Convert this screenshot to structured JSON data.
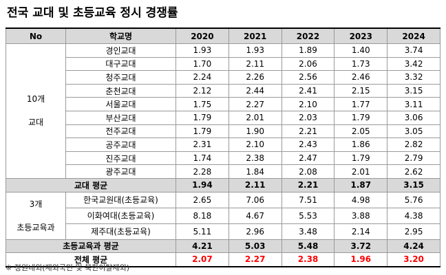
{
  "title": "전국 교대 및 초등교육 정시 경쟁률",
  "table": {
    "header": [
      "No",
      "학교명",
      "2020",
      "2021",
      "2022",
      "2023",
      "2024"
    ],
    "groups": [
      {
        "label": [
          "10개",
          "교대"
        ],
        "rows": [
          {
            "name": "경인교대",
            "values": [
              "1.93",
              "1.93",
              "1.89",
              "1.40",
              "3.74"
            ]
          },
          {
            "name": "대구교대",
            "values": [
              "1.70",
              "2.11",
              "2.06",
              "1.73",
              "3.42"
            ]
          },
          {
            "name": "청주교대",
            "values": [
              "2.24",
              "2.26",
              "2.56",
              "2.46",
              "3.32"
            ]
          },
          {
            "name": "춘천교대",
            "values": [
              "2.12",
              "2.44",
              "2.41",
              "2.15",
              "3.15"
            ]
          },
          {
            "name": "서울교대",
            "values": [
              "1.75",
              "2.27",
              "2.10",
              "1.77",
              "3.11"
            ]
          },
          {
            "name": "부산교대",
            "values": [
              "1.79",
              "2.01",
              "2.03",
              "1.79",
              "3.06"
            ]
          },
          {
            "name": "전주교대",
            "values": [
              "1.79",
              "1.90",
              "2.21",
              "2.05",
              "3.05"
            ]
          },
          {
            "name": "공주교대",
            "values": [
              "2.31",
              "2.10",
              "2.43",
              "1.86",
              "2.82"
            ]
          },
          {
            "name": "진주교대",
            "values": [
              "1.74",
              "2.38",
              "2.47",
              "1.79",
              "2.79"
            ]
          },
          {
            "name": "광주교대",
            "values": [
              "2.28",
              "1.84",
              "2.08",
              "2.01",
              "2.62"
            ]
          }
        ],
        "average": {
          "label": "교대 평균",
          "values": [
            "1.94",
            "2.11",
            "2.21",
            "1.87",
            "3.15"
          ]
        }
      },
      {
        "label": [
          "3개",
          "초등교육과"
        ],
        "rows": [
          {
            "name": "한국교원대(초등교육)",
            "values": [
              "2.65",
              "7.06",
              "7.51",
              "4.98",
              "5.76"
            ]
          },
          {
            "name": "이화여대(초등교육)",
            "values": [
              "8.18",
              "4.67",
              "5.53",
              "3.88",
              "4.38"
            ]
          },
          {
            "name": "제주대(초등교육)",
            "values": [
              "5.11",
              "2.96",
              "3.48",
              "2.14",
              "2.95"
            ]
          }
        ],
        "average": {
          "label": "초등교육과 평균",
          "values": [
            "4.21",
            "5.03",
            "5.48",
            "3.72",
            "4.24"
          ]
        }
      }
    ],
    "total": {
      "label": "전체 평균",
      "values": [
        "2.07",
        "2.27",
        "2.38",
        "1.96",
        "3.20"
      ]
    }
  },
  "footnote": "※ 정원내외(재외국민 및 북한이탈제외)"
}
